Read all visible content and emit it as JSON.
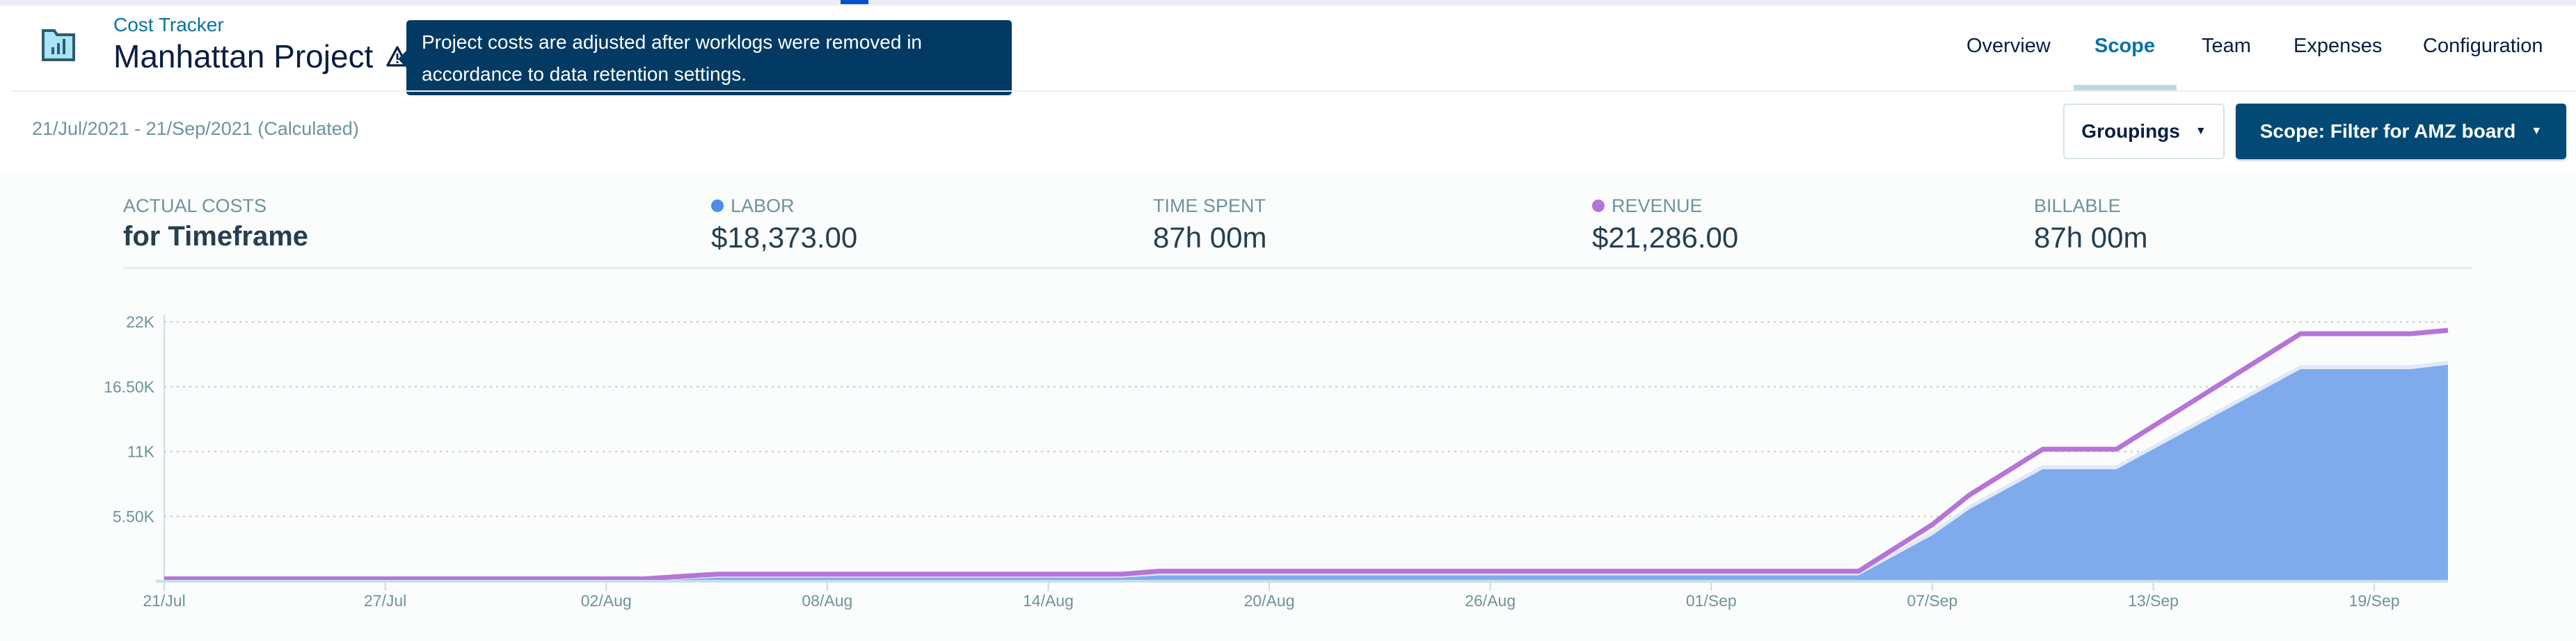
{
  "header": {
    "breadcrumb": "Cost Tracker",
    "title": "Manhattan Project",
    "warning_icon": "warning-triangle-icon",
    "app_icon": "folder-chart-icon",
    "tooltip": "Project costs are adjusted after worklogs were removed in accordance to data retention settings."
  },
  "nav": {
    "tabs": [
      {
        "label": "Overview",
        "active": false
      },
      {
        "label": "Scope",
        "active": true
      },
      {
        "label": "Team",
        "active": false
      },
      {
        "label": "Expenses",
        "active": false
      },
      {
        "label": "Configuration",
        "active": false
      }
    ]
  },
  "toolbar": {
    "date_range": "21/Jul/2021 - 21/Sep/2021 (Calculated)",
    "groupings_label": "Groupings",
    "scope_label": "Scope: Filter for AMZ board"
  },
  "summary": {
    "actual_costs_label": "ACTUAL COSTS",
    "actual_costs_sub": "for Timeframe",
    "labor_label": "LABOR",
    "labor_value": "$18,373.00",
    "time_spent_label": "TIME SPENT",
    "time_spent_value": "87h 00m",
    "revenue_label": "REVENUE",
    "revenue_value": "$21,286.00",
    "billable_label": "BILLABLE",
    "billable_value": "87h 00m"
  },
  "colors": {
    "labor": "#7faaec",
    "labor_dot": "#4c8be8",
    "revenue": "#b574d6",
    "accent": "#024a75"
  },
  "chart_data": {
    "type": "area",
    "x_range": [
      "2021-07-21",
      "2021-09-21"
    ],
    "ylim": [
      0,
      22000
    ],
    "y_ticks": [
      "",
      "5.50K",
      "11K",
      "16.50K",
      "22K"
    ],
    "y_tick_values": [
      0,
      5500,
      11000,
      16500,
      22000
    ],
    "x_ticks": [
      "21/Jul",
      "27/Jul",
      "02/Aug",
      "08/Aug",
      "14/Aug",
      "20/Aug",
      "26/Aug",
      "01/Sep",
      "07/Sep",
      "13/Sep",
      "19/Sep"
    ],
    "x_tick_dates": [
      "2021-07-21",
      "2021-07-27",
      "2021-08-02",
      "2021-08-08",
      "2021-08-14",
      "2021-08-20",
      "2021-08-26",
      "2021-09-01",
      "2021-09-07",
      "2021-09-13",
      "2021-09-19"
    ],
    "grid": true,
    "series": [
      {
        "name": "LABOR",
        "kind": "area",
        "points": [
          [
            "2021-07-21",
            0
          ],
          [
            "2021-08-03",
            0
          ],
          [
            "2021-08-05",
            300
          ],
          [
            "2021-08-16",
            300
          ],
          [
            "2021-08-17",
            500
          ],
          [
            "2021-09-05",
            500
          ],
          [
            "2021-09-07",
            3900
          ],
          [
            "2021-09-08",
            6100
          ],
          [
            "2021-09-10",
            9500
          ],
          [
            "2021-09-12",
            9500
          ],
          [
            "2021-09-17",
            18000
          ],
          [
            "2021-09-20",
            18000
          ],
          [
            "2021-09-21",
            18373
          ]
        ]
      },
      {
        "name": "REVENUE",
        "kind": "line",
        "points": [
          [
            "2021-07-21",
            200
          ],
          [
            "2021-08-03",
            200
          ],
          [
            "2021-08-05",
            600
          ],
          [
            "2021-08-16",
            600
          ],
          [
            "2021-08-17",
            850
          ],
          [
            "2021-09-05",
            850
          ],
          [
            "2021-09-07",
            4800
          ],
          [
            "2021-09-08",
            7300
          ],
          [
            "2021-09-10",
            11200
          ],
          [
            "2021-09-12",
            11200
          ],
          [
            "2021-09-17",
            21000
          ],
          [
            "2021-09-20",
            21000
          ],
          [
            "2021-09-21",
            21286
          ]
        ]
      }
    ]
  }
}
